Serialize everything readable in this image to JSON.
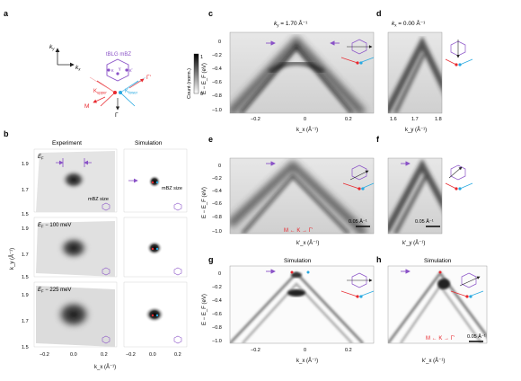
{
  "panel_letters": {
    "a": "a",
    "b": "b",
    "c": "c",
    "d": "d",
    "e": "e",
    "f": "f",
    "g": "g",
    "h": "h"
  },
  "panel_a": {
    "title": "tBLG mBZ",
    "ky": "k",
    "ky_sub": "y",
    "kx": "k",
    "kx_sub": "x",
    "K_upper": "K",
    "K_upper_sub": "upper",
    "K_lower": "K",
    "K_lower_sub": "lower",
    "M_bar": "M",
    "Gamma_bar": "Γ",
    "Gamma_prime": "Γ'",
    "kappa": "κ",
    "kappa_prime": "κ'",
    "gamma": "γ"
  },
  "colorbar": {
    "label": "Count (norm.)",
    "max": "1",
    "min": "0"
  },
  "panel_b": {
    "col_experiment": "Experiment",
    "col_simulation": "Simulation",
    "rows": [
      {
        "energy": "E_F",
        "energy_text": "E",
        "energy_sub": "F",
        "energy_suffix": "",
        "mbz_label": "mBZ size"
      },
      {
        "energy_text": "E",
        "energy_sub": "F",
        "energy_suffix": " − 100 meV",
        "mbz_label": ""
      },
      {
        "energy_text": "E",
        "energy_sub": "F",
        "energy_suffix": " − 225 meV",
        "mbz_label": ""
      }
    ],
    "sim_mbz_label": "mBZ size",
    "yaxis_label": "k_y (Å⁻¹)",
    "xaxis_label": "k_x (Å⁻¹)",
    "yticks": [
      "1.9",
      "1.7",
      "1.5"
    ],
    "xticks": [
      "−0.2",
      "0.0",
      "0.2"
    ]
  },
  "panel_c": {
    "title_prefix": "k",
    "title_sub": "y",
    "title_suffix": " = 1.70 Å⁻¹",
    "ylabel": "E − E_F (eV)",
    "xlabel": "k_x (Å⁻¹)",
    "xticks": [
      "−0.2",
      "0",
      "0.2"
    ],
    "yticks": [
      "0",
      "−0.2",
      "−0.4",
      "−0.6",
      "−0.8",
      "−1.0"
    ]
  },
  "panel_d": {
    "title_prefix": "k",
    "title_sub": "x",
    "title_suffix": " = 0.00 Å⁻¹",
    "xlabel": "k_y (Å⁻¹)",
    "xticks": [
      "1.6",
      "1.7",
      "1.8"
    ]
  },
  "panel_e": {
    "ylabel": "E − E_F (eV)",
    "xlabel": "k'_x (Å⁻¹)",
    "path": "M ← K → Γ'",
    "scale": "0.05 Å⁻¹",
    "yticks": [
      "0",
      "−0.2",
      "−0.4",
      "−0.6",
      "−0.8",
      "−1.0"
    ]
  },
  "panel_f": {
    "xlabel": "k'_y (Å⁻¹)",
    "scale": "0.05 Å⁻¹"
  },
  "panel_g": {
    "title": "Simulation",
    "ylabel": "E − E_F (eV)",
    "xlabel": "k_x (Å⁻¹)",
    "xticks": [
      "−0.2",
      "0",
      "0.2"
    ],
    "yticks": [
      "0",
      "−0.2",
      "−0.4",
      "−0.6",
      "−0.8",
      "−1.0"
    ]
  },
  "panel_h": {
    "title": "Simulation",
    "xlabel": "k'_x (Å⁻¹)",
    "path": "M ← K → Γ'",
    "scale": "0.05 Å⁻¹"
  },
  "colors": {
    "purple": "#8a52c7",
    "red": "#e8282e",
    "cyan": "#27a9e1",
    "light_red": "#f4a4a6",
    "light_cyan": "#9cd4f0"
  }
}
